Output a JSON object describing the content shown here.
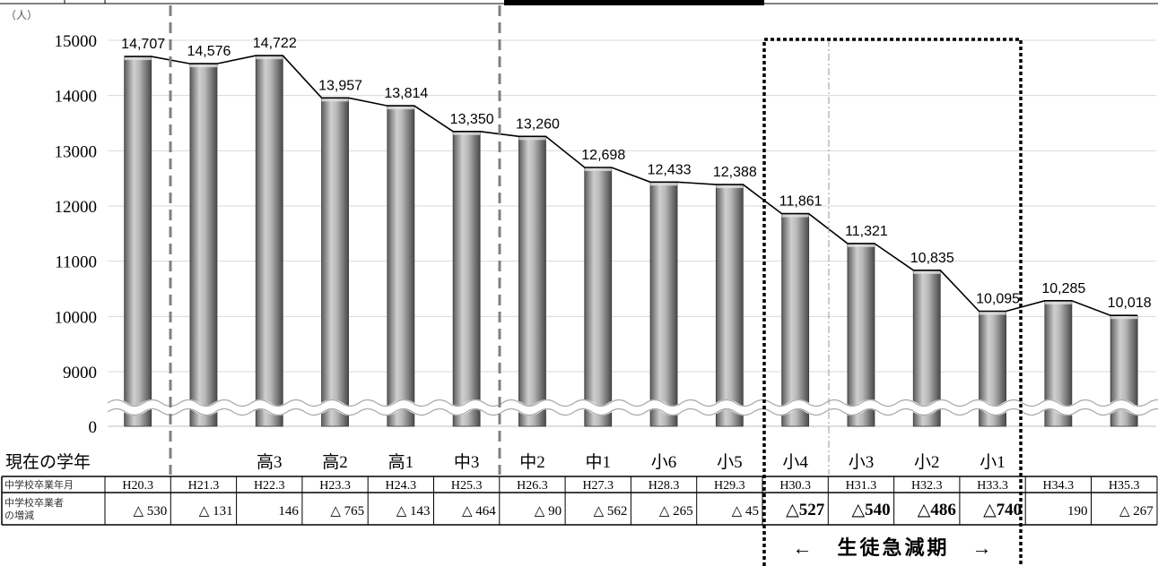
{
  "chart_data": {
    "type": "bar",
    "unit": "（人）",
    "categories": [
      "H20.3",
      "H21.3",
      "H22.3",
      "H23.3",
      "H24.3",
      "H25.3",
      "H26.3",
      "H27.3",
      "H28.3",
      "H29.3",
      "H30.3",
      "H31.3",
      "H32.3",
      "H33.3",
      "H34.3",
      "H35.3"
    ],
    "values": [
      14707,
      14576,
      14722,
      13957,
      13814,
      13350,
      13260,
      12698,
      12433,
      12388,
      11861,
      11321,
      10835,
      10095,
      10285,
      10018
    ],
    "value_labels": [
      "14,707",
      "14,576",
      "14,722",
      "13,957",
      "13,814",
      "13,350",
      "13,260",
      "12,698",
      "12,433",
      "12,388",
      "11,861",
      "11,321",
      "10,835",
      "10,095",
      "10,285",
      "10,018"
    ],
    "y_ticks": [
      "15000",
      "14000",
      "13000",
      "12000",
      "11000",
      "10000",
      "9000",
      "0"
    ],
    "ylim": [
      8500,
      15000
    ],
    "axis_break": true,
    "grid": true,
    "bar_color": "#9e9e9e",
    "line_color": "#000000"
  },
  "table": {
    "grade_header": "現在の学年",
    "grades": [
      "",
      "",
      "高3",
      "高2",
      "高1",
      "中3",
      "中2",
      "中1",
      "小6",
      "小5",
      "小4",
      "小3",
      "小2",
      "小1",
      "",
      ""
    ],
    "row1_header": "中学校卒業年月",
    "row2_header_line1": "中学校卒業者",
    "row2_header_line2": "の増減",
    "changes": [
      "△ 530",
      "△ 131",
      "146",
      "△ 765",
      "△ 143",
      "△ 464",
      "△ 90",
      "△ 562",
      "△ 265",
      "△ 45",
      "△527",
      "△540",
      "△486",
      "△740",
      "190",
      "△ 267"
    ]
  },
  "period_label": "←　生徒急減期　→"
}
